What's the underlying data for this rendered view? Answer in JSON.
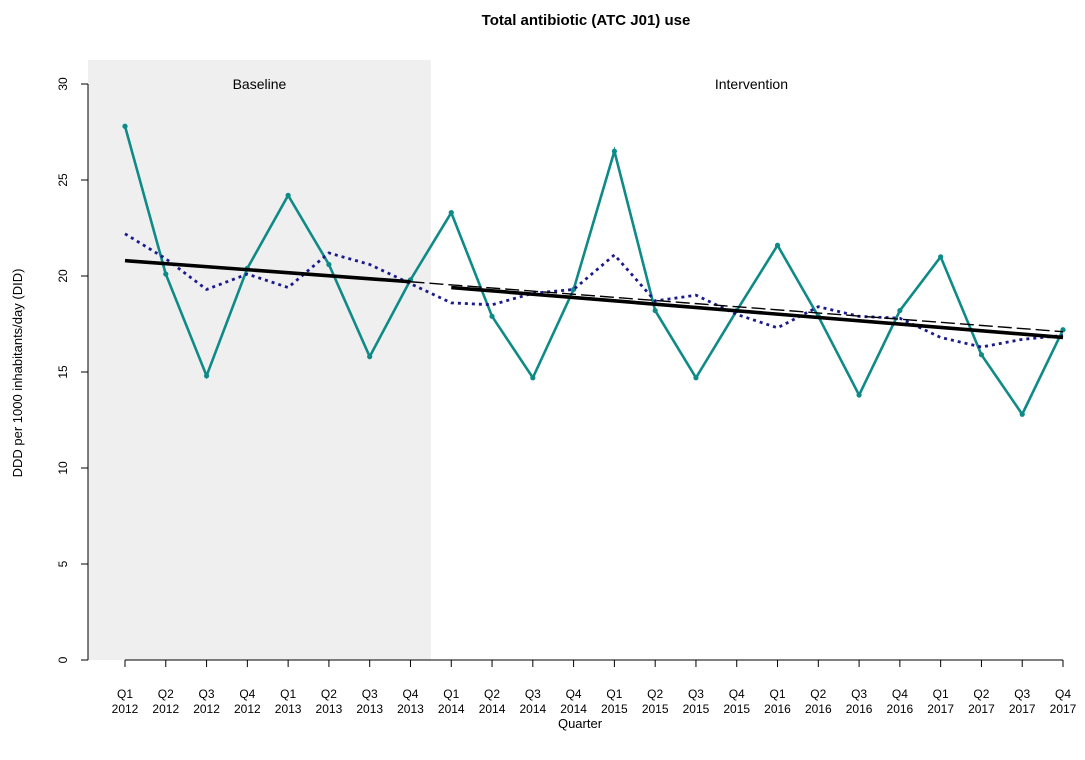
{
  "chart_data": {
    "type": "line",
    "title": "Total antibiotic (ATC J01) use",
    "xlabel": "Quarter",
    "ylabel": "DDD per 1000 inhabitants/day (DID)",
    "ylim": [
      0,
      30
    ],
    "yticks": [
      0,
      5,
      10,
      15,
      20,
      25,
      30
    ],
    "grid": false,
    "legend": "none",
    "categories": [
      {
        "q": "Q1",
        "year": "2012"
      },
      {
        "q": "Q2",
        "year": "2012"
      },
      {
        "q": "Q3",
        "year": "2012"
      },
      {
        "q": "Q4",
        "year": "2012"
      },
      {
        "q": "Q1",
        "year": "2013"
      },
      {
        "q": "Q2",
        "year": "2013"
      },
      {
        "q": "Q3",
        "year": "2013"
      },
      {
        "q": "Q4",
        "year": "2013"
      },
      {
        "q": "Q1",
        "year": "2014"
      },
      {
        "q": "Q2",
        "year": "2014"
      },
      {
        "q": "Q3",
        "year": "2014"
      },
      {
        "q": "Q4",
        "year": "2014"
      },
      {
        "q": "Q1",
        "year": "2015"
      },
      {
        "q": "Q2",
        "year": "2015"
      },
      {
        "q": "Q3",
        "year": "2015"
      },
      {
        "q": "Q4",
        "year": "2015"
      },
      {
        "q": "Q1",
        "year": "2016"
      },
      {
        "q": "Q2",
        "year": "2016"
      },
      {
        "q": "Q3",
        "year": "2016"
      },
      {
        "q": "Q4",
        "year": "2016"
      },
      {
        "q": "Q1",
        "year": "2017"
      },
      {
        "q": "Q2",
        "year": "2017"
      },
      {
        "q": "Q3",
        "year": "2017"
      },
      {
        "q": "Q4",
        "year": "2017"
      }
    ],
    "regions": [
      {
        "label": "Baseline",
        "start_index": 0,
        "end_index": 7,
        "shaded": true,
        "color": "#efefef"
      },
      {
        "label": "Intervention",
        "start_index": 8,
        "end_index": 23,
        "shaded": false
      }
    ],
    "series": [
      {
        "style": "solid-markers",
        "color": "#0e8a87",
        "values": [
          27.8,
          20.1,
          14.8,
          20.4,
          24.2,
          20.6,
          15.8,
          19.8,
          23.3,
          17.9,
          14.7,
          19.3,
          26.5,
          18.2,
          14.7,
          18.2,
          21.6,
          17.9,
          13.8,
          18.2,
          21.0,
          15.9,
          12.8,
          17.2
        ]
      },
      {
        "style": "dotted",
        "color": "#1a1a8c",
        "values": [
          22.2,
          20.9,
          19.3,
          20.1,
          19.4,
          21.2,
          20.6,
          19.6,
          18.6,
          18.5,
          19.1,
          19.3,
          21.1,
          18.7,
          19.0,
          18.0,
          17.3,
          18.4,
          17.9,
          17.8,
          16.8,
          16.3,
          16.7,
          16.9
        ]
      },
      {
        "style": "thick-solid",
        "color": "#000000",
        "segments": [
          {
            "from_index": 0,
            "to_index": 7,
            "from_value": 20.8,
            "to_value": 19.7
          },
          {
            "from_index": 8,
            "to_index": 23,
            "from_value": 19.4,
            "to_value": 16.8
          }
        ]
      },
      {
        "style": "dashed",
        "color": "#000000",
        "segments": [
          {
            "from_index": 7,
            "to_index": 23,
            "from_value": 19.7,
            "to_value": 17.1
          }
        ]
      }
    ]
  }
}
